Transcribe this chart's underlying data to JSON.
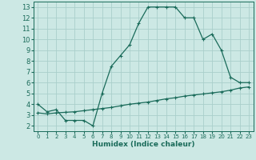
{
  "xlabel": "Humidex (Indice chaleur)",
  "bg_color": "#cce8e4",
  "grid_color": "#aacfcb",
  "line_color": "#1a6b5a",
  "xlim": [
    -0.5,
    23.5
  ],
  "ylim": [
    1.5,
    13.5
  ],
  "xticks": [
    0,
    1,
    2,
    3,
    4,
    5,
    6,
    7,
    8,
    9,
    10,
    11,
    12,
    13,
    14,
    15,
    16,
    17,
    18,
    19,
    20,
    21,
    22,
    23
  ],
  "yticks": [
    2,
    3,
    4,
    5,
    6,
    7,
    8,
    9,
    10,
    11,
    12,
    13
  ],
  "upper_x": [
    0,
    1,
    2,
    3,
    4,
    5,
    6,
    7,
    8,
    9,
    10,
    11,
    12,
    13,
    14,
    15,
    16,
    17,
    18,
    19,
    20,
    21,
    22,
    23
  ],
  "upper_y": [
    4.0,
    3.3,
    3.5,
    2.5,
    2.5,
    2.5,
    2.0,
    5.0,
    7.5,
    8.5,
    9.5,
    11.5,
    13.0,
    13.0,
    13.0,
    13.0,
    12.0,
    12.0,
    10.0,
    10.5,
    9.0,
    6.5,
    6.0,
    6.0
  ],
  "lower_x": [
    0,
    1,
    2,
    3,
    4,
    5,
    6,
    7,
    8,
    9,
    10,
    11,
    12,
    13,
    14,
    15,
    16,
    17,
    18,
    19,
    20,
    21,
    22,
    23
  ],
  "lower_y": [
    3.2,
    3.1,
    3.2,
    3.25,
    3.3,
    3.4,
    3.5,
    3.6,
    3.7,
    3.85,
    4.0,
    4.1,
    4.2,
    4.35,
    4.5,
    4.6,
    4.75,
    4.85,
    4.95,
    5.05,
    5.15,
    5.3,
    5.5,
    5.6
  ]
}
